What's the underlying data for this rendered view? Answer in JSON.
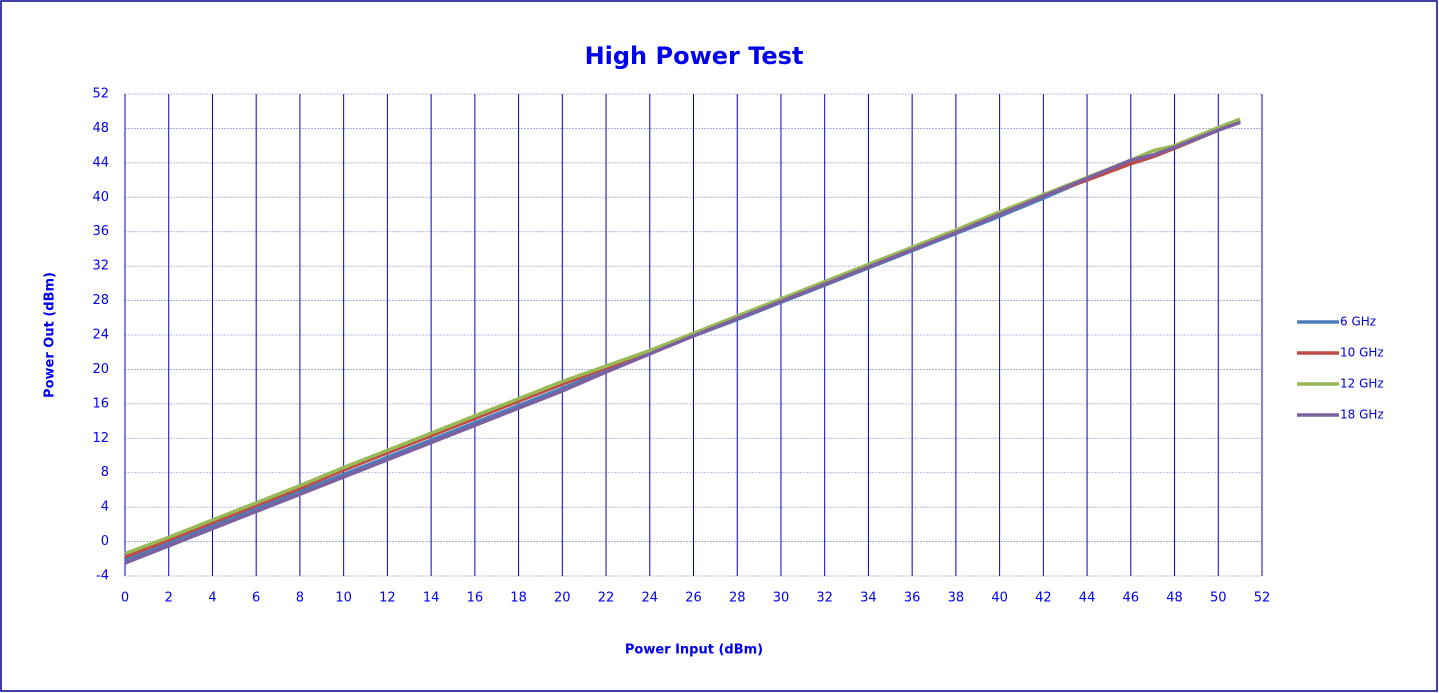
{
  "chart_data": {
    "type": "line",
    "title": "High Power Test",
    "x_label": "Power Input  (dBm)",
    "y_label": "Power Out  (dBm)",
    "x": [
      0,
      2,
      4,
      6,
      8,
      10,
      12,
      14,
      16,
      18,
      20,
      22,
      24,
      26,
      28,
      30,
      32,
      34,
      36,
      38,
      40,
      42,
      44,
      46,
      47,
      48,
      50,
      51
    ],
    "series": [
      {
        "name": "6 GHz",
        "color": "#4a7ebb",
        "values": [
          -2.2,
          -0.2,
          1.8,
          3.8,
          5.8,
          7.8,
          9.8,
          11.8,
          13.8,
          15.8,
          17.8,
          19.9,
          21.9,
          23.9,
          25.8,
          27.8,
          29.8,
          31.8,
          33.8,
          35.8,
          37.8,
          39.9,
          42.1,
          44.2,
          44.8,
          45.7,
          47.8,
          48.8
        ]
      },
      {
        "name": "10 GHz",
        "color": "#be4b48",
        "values": [
          -1.8,
          0.2,
          2.2,
          4.2,
          6.2,
          8.3,
          10.3,
          12.3,
          14.3,
          16.3,
          18.3,
          20.2,
          22.1,
          24.1,
          26.1,
          28.1,
          30.1,
          32.1,
          34.1,
          36.1,
          38.1,
          40.2,
          42.0,
          43.9,
          44.7,
          45.7,
          47.8,
          48.8
        ]
      },
      {
        "name": "12 GHz",
        "color": "#98b954",
        "values": [
          -1.4,
          0.5,
          2.5,
          4.5,
          6.5,
          8.6,
          10.6,
          12.6,
          14.6,
          16.6,
          18.6,
          20.4,
          22.2,
          24.2,
          26.2,
          28.2,
          30.2,
          32.2,
          34.2,
          36.2,
          38.3,
          40.3,
          42.3,
          44.3,
          45.4,
          46.0,
          48.1,
          49.1
        ]
      },
      {
        "name": "18 GHz",
        "color": "#7d60a0",
        "values": [
          -2.5,
          -0.5,
          1.5,
          3.5,
          5.5,
          7.5,
          9.5,
          11.5,
          13.5,
          15.5,
          17.5,
          19.7,
          21.8,
          23.9,
          25.9,
          27.9,
          29.9,
          31.9,
          33.9,
          35.9,
          38.0,
          40.1,
          42.2,
          44.3,
          44.9,
          45.8,
          47.8,
          48.7
        ]
      }
    ],
    "xlim": [
      0,
      52
    ],
    "xticks": [
      0,
      2,
      4,
      6,
      8,
      10,
      12,
      14,
      16,
      18,
      20,
      22,
      24,
      26,
      28,
      30,
      32,
      34,
      36,
      38,
      40,
      42,
      44,
      46,
      48,
      50,
      52
    ],
    "ylim": [
      -4,
      52
    ],
    "yticks": [
      -4,
      0,
      4,
      8,
      12,
      16,
      20,
      24,
      28,
      32,
      36,
      40,
      44,
      48,
      52
    ],
    "grid": true,
    "legend": "right"
  }
}
